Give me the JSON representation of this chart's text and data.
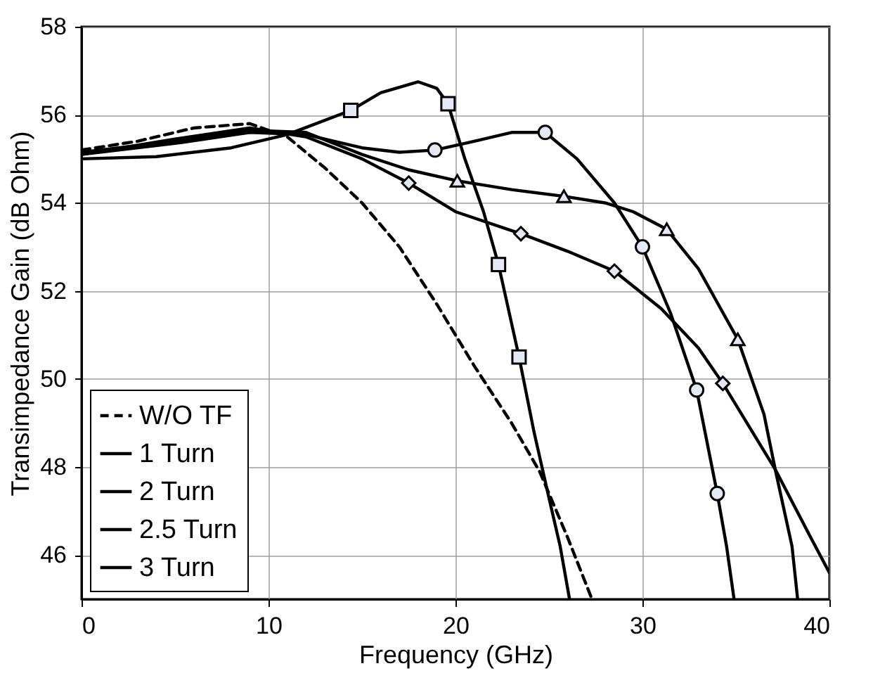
{
  "chart_data": {
    "type": "line",
    "xlabel": "Frequency (GHz)",
    "ylabel": "Transimpedance Gain (dB Ohm)",
    "xlim": [
      0,
      40
    ],
    "xticks": [
      0,
      10,
      20,
      30,
      40
    ],
    "ylim": [
      45,
      58
    ],
    "yticks": [
      46,
      48,
      50,
      52,
      54,
      56,
      58
    ],
    "grid": true,
    "legend": "bottom left",
    "series": [
      {
        "name": "W/O TF",
        "color": "#000000",
        "line_style": "dashed",
        "x": [
          0,
          3,
          6,
          9,
          11,
          13,
          15,
          17,
          19,
          21,
          23,
          24.5,
          26,
          27.3
        ],
        "values": [
          55.2,
          55.4,
          55.7,
          55.8,
          55.5,
          54.8,
          54.0,
          53.0,
          51.7,
          50.3,
          49.0,
          47.9,
          46.4,
          45.0
        ]
      },
      {
        "name": "1    Turn",
        "color": "#000000",
        "line_style": "solid",
        "x": [
          0,
          5,
          9,
          12,
          15,
          17.5,
          20,
          23.5,
          26,
          28.5,
          31,
          33,
          34.3,
          37.1,
          39,
          40
        ],
        "values": [
          55.1,
          55.45,
          55.7,
          55.5,
          55.0,
          54.45,
          53.8,
          53.3,
          52.9,
          52.45,
          51.6,
          50.7,
          49.9,
          47.95,
          46.4,
          45.6
        ]
      },
      {
        "type": "scatter",
        "marker": "diamond",
        "color": "#000000",
        "x": [
          17.5,
          23.5,
          28.5,
          34.3
        ],
        "values": [
          54.45,
          53.3,
          52.45,
          49.9
        ]
      },
      {
        "name": "2    Turn",
        "color": "#000000",
        "line_style": "solid",
        "x": [
          0,
          5,
          9,
          12,
          15,
          17.5,
          20.1,
          23,
          25.8,
          28,
          29.5,
          31.3,
          33,
          35.1,
          36.5,
          37.1,
          38,
          38.3
        ],
        "values": [
          55.15,
          55.4,
          55.65,
          55.6,
          55.1,
          54.75,
          54.5,
          54.3,
          54.15,
          54.0,
          53.8,
          53.4,
          52.5,
          50.9,
          49.2,
          47.95,
          46.2,
          45.0
        ]
      },
      {
        "type": "scatter",
        "marker": "triangle",
        "color": "#000000",
        "x": [
          20.1,
          25.8,
          31.3,
          35.1
        ],
        "values": [
          54.5,
          54.15,
          53.4,
          50.9
        ]
      },
      {
        "name": "2.5 Turn",
        "color": "#000000",
        "line_style": "solid",
        "x": [
          0,
          5,
          9,
          12,
          15,
          17,
          18.9,
          21,
          23,
          24.8,
          26.5,
          28.5,
          30,
          31.5,
          32.9,
          34,
          34.5,
          34.9
        ],
        "values": [
          55.1,
          55.35,
          55.6,
          55.55,
          55.25,
          55.15,
          55.2,
          55.4,
          55.6,
          55.6,
          55.0,
          54.0,
          53.0,
          51.5,
          49.75,
          47.4,
          46.2,
          45.0
        ]
      },
      {
        "type": "scatter",
        "marker": "circle",
        "color": "#000000",
        "x": [
          18.9,
          24.8,
          30,
          32.9,
          34
        ],
        "values": [
          55.2,
          55.6,
          53.0,
          49.75,
          47.4
        ]
      },
      {
        "name": "3    Turn",
        "color": "#000000",
        "line_style": "solid",
        "x": [
          0,
          4,
          8,
          11,
          14.4,
          16,
          18,
          19,
          19.6,
          20.5,
          21.5,
          22.3,
          23.4,
          24.2,
          25,
          25.6,
          26.1
        ],
        "values": [
          55.0,
          55.05,
          55.25,
          55.55,
          56.1,
          56.5,
          56.75,
          56.6,
          56.25,
          55.0,
          53.8,
          52.6,
          50.5,
          48.8,
          47.3,
          46.2,
          45.0
        ]
      },
      {
        "type": "scatter",
        "marker": "square",
        "color": "#000000",
        "x": [
          14.4,
          19.6,
          22.3,
          23.4
        ],
        "values": [
          56.1,
          56.25,
          52.6,
          50.5
        ]
      }
    ]
  }
}
